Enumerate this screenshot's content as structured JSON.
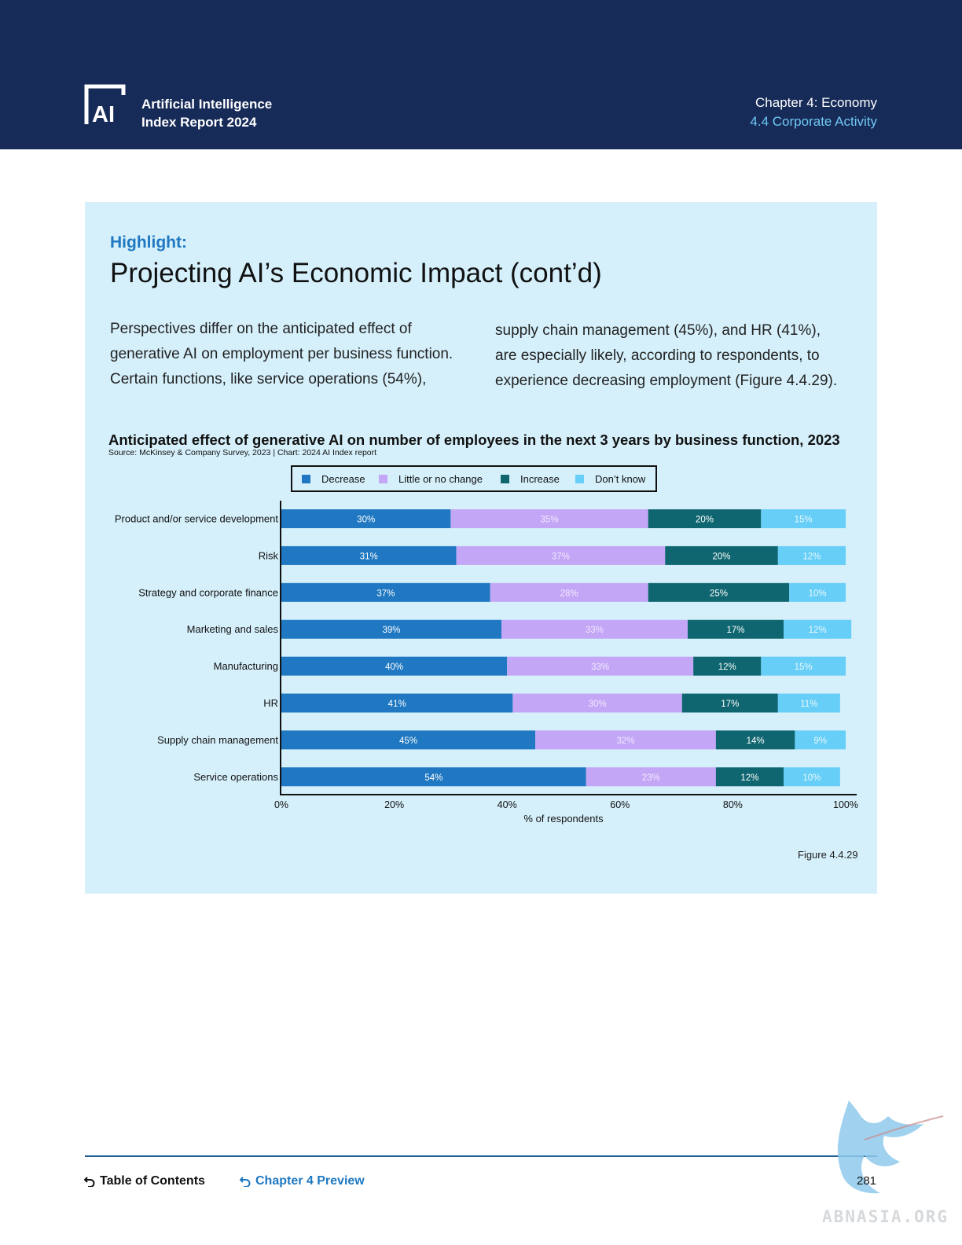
{
  "header": {
    "logo_text": "AI",
    "report_line1": "Artificial Intelligence",
    "report_line2": "Index Report 2024",
    "chapter_title": "Chapter 4: Economy",
    "chapter_section": "4.4 Corporate Activity"
  },
  "highlight": {
    "label": "Highlight:",
    "title": "Projecting AI’s Economic Impact (cont’d)",
    "left_lines": [
      "Perspectives differ on the anticipated effect of",
      "generative AI on employment per business function.",
      "Certain functions, like service operations (54%),"
    ],
    "right_lines": [
      "supply chain management (45%), and HR (41%),",
      "are especially likely, according to respondents, to",
      "experience decreasing employment (Figure 4.4.29)."
    ]
  },
  "chart_data": {
    "type": "bar",
    "orientation": "horizontal",
    "stacked": true,
    "title": "Anticipated effect of generative AI on number of employees in the next 3 years by business function, 2023",
    "source": "Source: McKinsey & Company Survey, 2023 | Chart: 2024 AI Index report",
    "xlabel": "% of respondents",
    "ylabel": "",
    "xlim": [
      0,
      100
    ],
    "xticks": [
      "0%",
      "20%",
      "40%",
      "60%",
      "80%",
      "100%"
    ],
    "legend_position": "top",
    "categories": [
      "Product and/or service development",
      "Risk",
      "Strategy and corporate finance",
      "Marketing and sales",
      "Manufacturing",
      "HR",
      "Supply chain management",
      "Service operations"
    ],
    "series": [
      {
        "name": "Decrease",
        "color": "#1f78c1",
        "values": [
          30,
          31,
          37,
          39,
          40,
          41,
          45,
          54
        ]
      },
      {
        "name": "Little or no change",
        "color": "#c4a6f7",
        "values": [
          35,
          37,
          28,
          33,
          33,
          30,
          32,
          23
        ]
      },
      {
        "name": "Increase",
        "color": "#0f6670",
        "values": [
          20,
          20,
          25,
          17,
          12,
          17,
          14,
          12
        ]
      },
      {
        "name": "Don’t know",
        "color": "#66cef7",
        "values": [
          15,
          12,
          10,
          12,
          15,
          11,
          9,
          10
        ]
      }
    ],
    "label_colors": [
      "#ffffff",
      "#f1eafd",
      "#ffffff",
      "#e9f8fe"
    ],
    "grid": false
  },
  "figure_label": "Figure 4.4.29",
  "footer": {
    "toc": "Table of Contents",
    "chapter_preview": "Chapter 4 Preview",
    "page_number": "281"
  },
  "watermark": {
    "text": "ABNASIA.ORG"
  },
  "colors": {
    "header_bg": "#172b58",
    "panel_bg": "#d5f0fb",
    "accent": "#1f78c1"
  }
}
